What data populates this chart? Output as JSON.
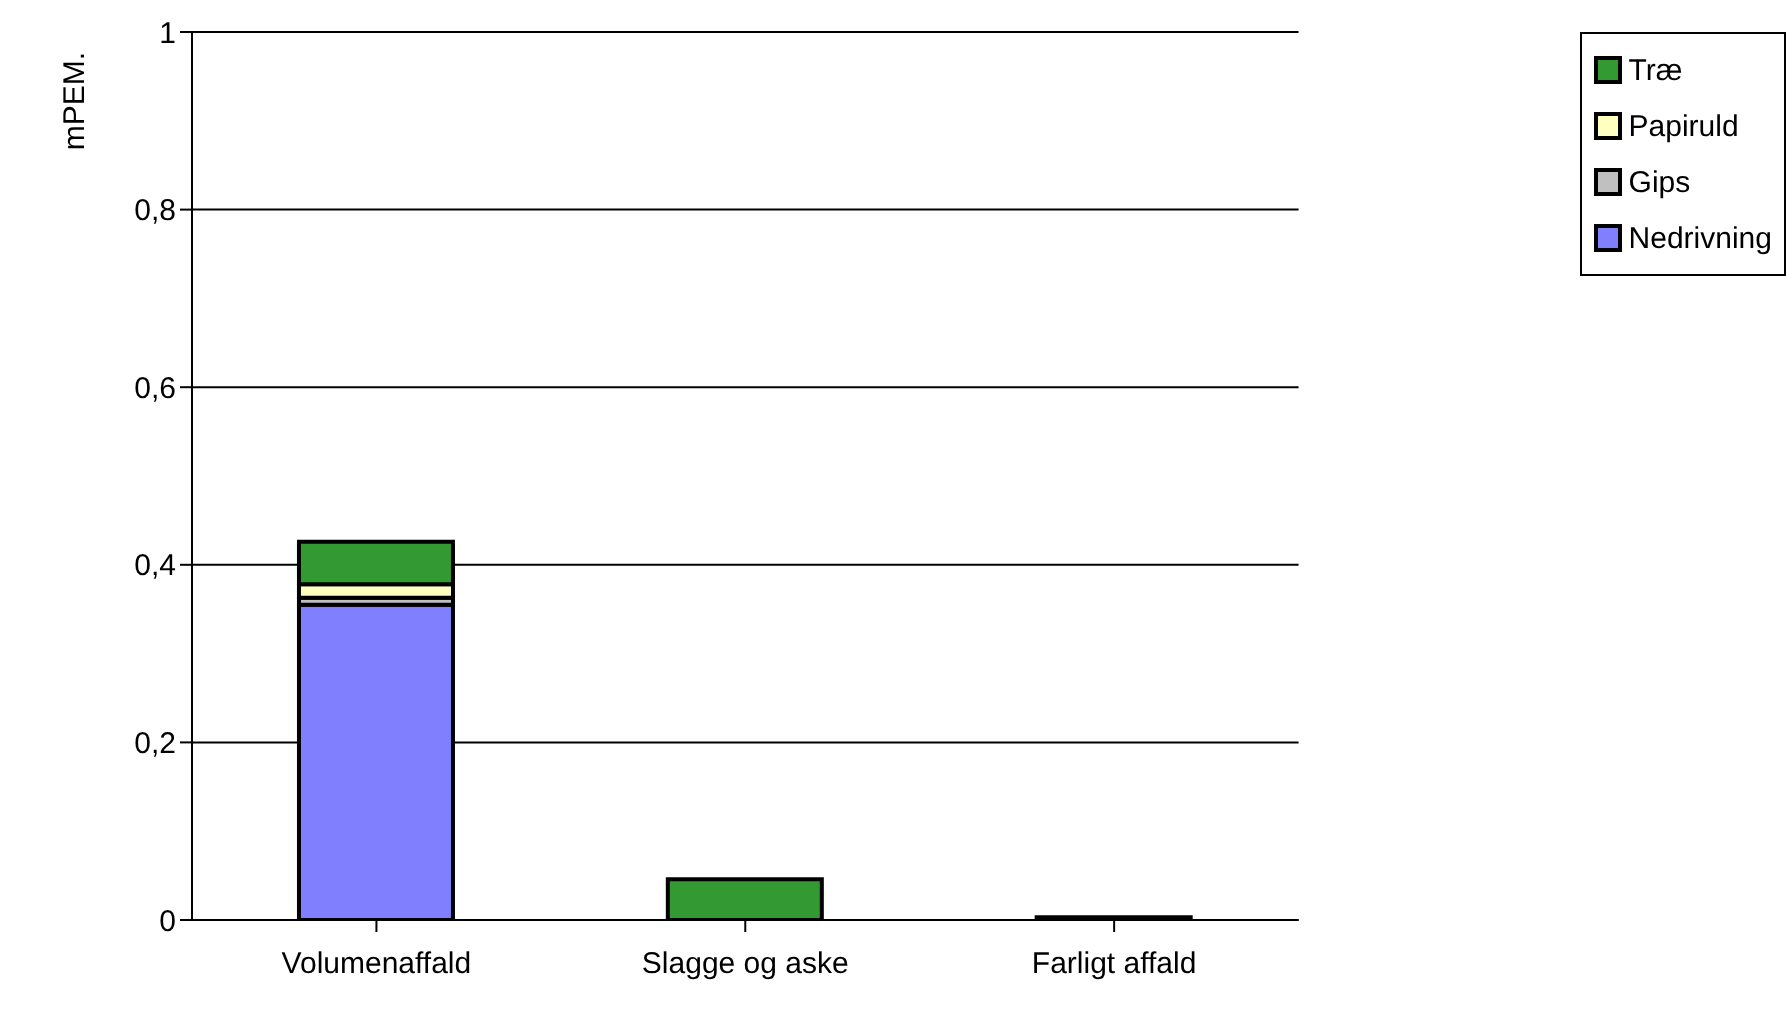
{
  "chart_data": {
    "type": "bar",
    "stacked": true,
    "ylabel": "mPEM.",
    "categories": [
      "Volumenaffald",
      "Slagge og aske",
      "Farligt affald"
    ],
    "series": [
      {
        "name": "Nedrivning",
        "color": "#8080ff",
        "values": [
          0.355,
          null,
          0
        ]
      },
      {
        "name": "Gips",
        "color": "#c0c0c0",
        "values": [
          0.008,
          0,
          0
        ]
      },
      {
        "name": "Papiruld",
        "color": "#ffffc0",
        "values": [
          0.015,
          0,
          0
        ]
      },
      {
        "name": "Træ",
        "color": "#339933",
        "values": [
          0.048,
          0.046,
          0.003
        ]
      }
    ],
    "ylim": [
      0,
      1
    ],
    "yticks": [
      {
        "value": 0,
        "label": "0"
      },
      {
        "value": 0.2,
        "label": "0,2"
      },
      {
        "value": 0.4,
        "label": "0,4"
      },
      {
        "value": 0.6,
        "label": "0,6"
      },
      {
        "value": 0.8,
        "label": "0,8"
      },
      {
        "value": 1,
        "label": "1"
      }
    ],
    "grid": "y",
    "legend": "top right"
  }
}
